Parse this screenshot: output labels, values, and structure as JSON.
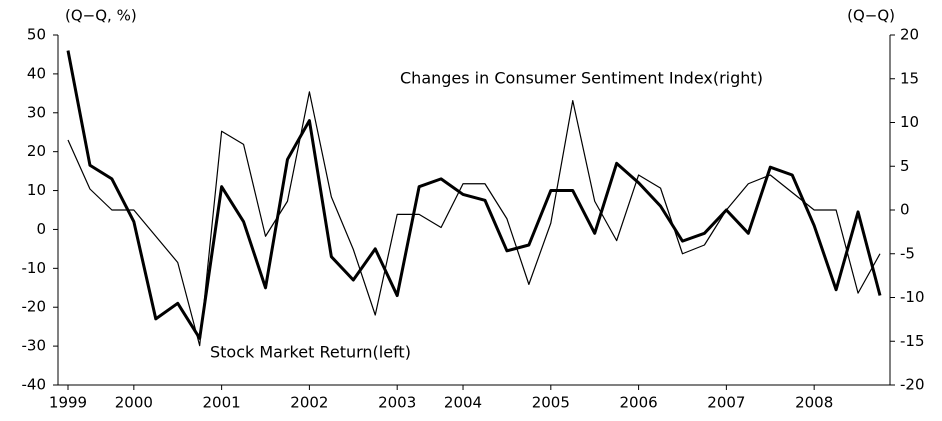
{
  "chart_data": {
    "type": "line",
    "y_label": "(Q−Q, %)",
    "y2_label": "(Q−Q)",
    "categories": [
      "1999",
      null,
      null,
      "2000",
      null,
      null,
      null,
      "2001",
      null,
      null,
      null,
      "2002",
      null,
      null,
      null,
      "2003",
      null,
      null,
      "2004",
      null,
      null,
      null,
      "2005",
      null,
      null,
      null,
      "2006",
      null,
      null,
      null,
      "2007",
      null,
      null,
      null,
      "2008",
      null,
      null,
      null
    ],
    "series": [
      {
        "name": "Stock Market Return(left)",
        "color": "#000000",
        "width": 3,
        "values": [
          46,
          16.5,
          13,
          2,
          -23,
          -19,
          -28,
          11,
          2,
          -15,
          18,
          28,
          -7,
          -13,
          -5,
          -17,
          11,
          13,
          9,
          7.5,
          -5.5,
          -4,
          10,
          10,
          -1,
          17,
          12,
          6,
          -3,
          -1,
          5,
          -1,
          16,
          14,
          1,
          -15.5,
          4.5,
          -17
        ]
      },
      {
        "name": "Changes in Consumer Sentiment Index(right)",
        "color": "#000000",
        "width": 1.2,
        "axis": "y2",
        "values": [
          8,
          2.4,
          0,
          0,
          -3,
          -6,
          -15.5,
          9,
          7.5,
          -3,
          1,
          13.5,
          1.5,
          -4.5,
          -12,
          -0.5,
          -0.5,
          -2,
          3,
          3,
          -1,
          -8.5,
          -1.5,
          12.5,
          1,
          -3.5,
          4,
          2.5,
          -5,
          -4,
          0,
          3,
          4,
          2,
          0,
          0,
          -9.5,
          -5
        ]
      }
    ],
    "ylim": [
      -40,
      50
    ],
    "yticks": [
      -40,
      -30,
      -20,
      -10,
      0,
      10,
      20,
      30,
      40,
      50
    ],
    "y2lim": [
      -20,
      20
    ],
    "y2ticks": [
      -20,
      -15,
      -10,
      -5,
      0,
      5,
      10,
      15,
      20
    ],
    "grid": false
  }
}
